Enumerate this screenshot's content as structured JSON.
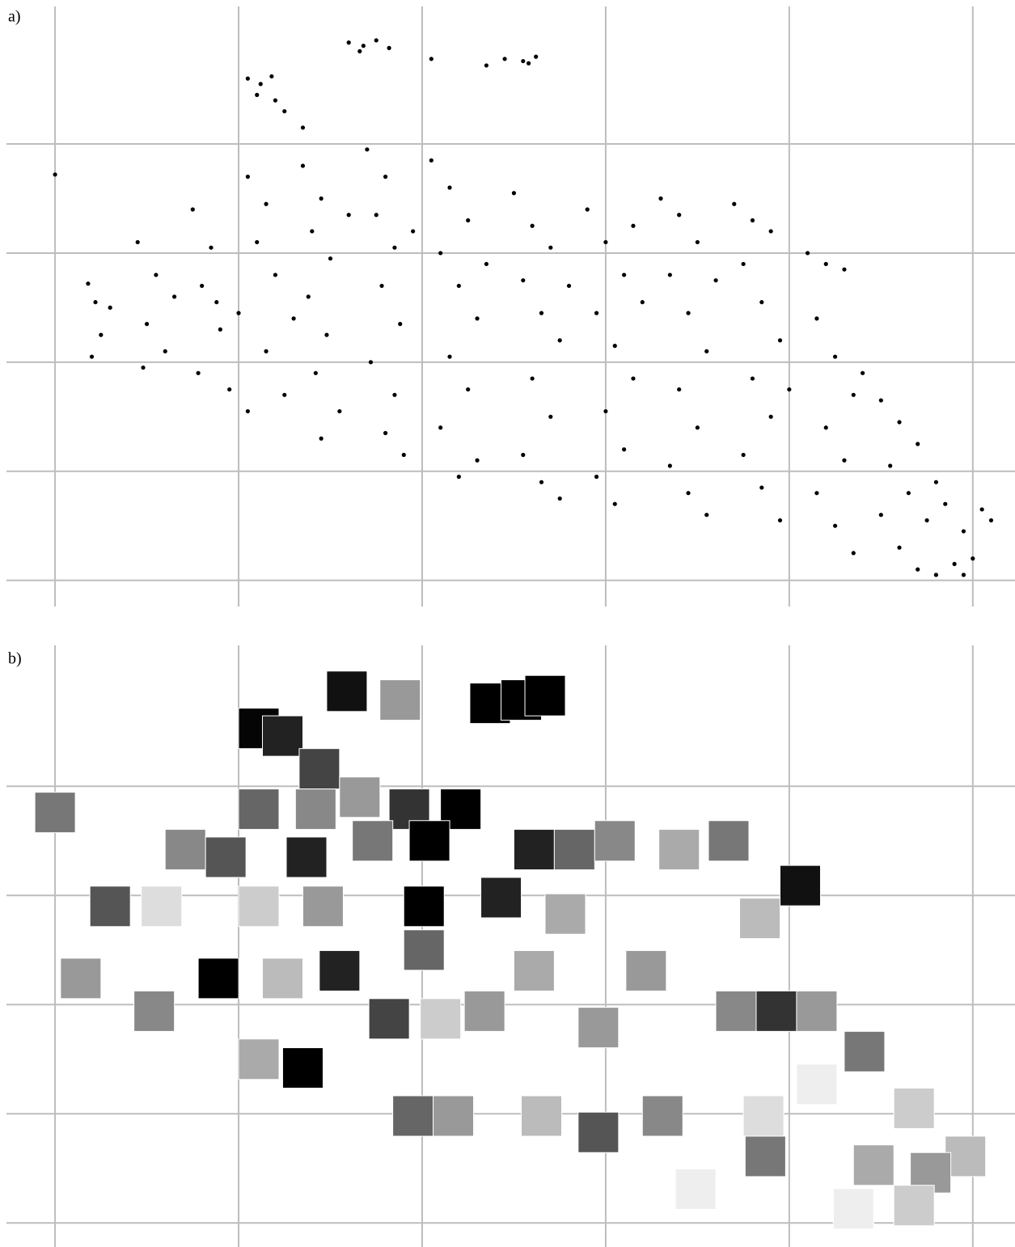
{
  "chart_data": [
    {
      "type": "scatter",
      "title": "a)",
      "color": "#000000",
      "grid": true,
      "xlim": [
        -0.3,
        5.23
      ],
      "ylim": [
        -0.24,
        5.32
      ],
      "xticks": [
        0,
        1,
        2,
        3,
        4,
        5
      ],
      "yticks": [
        0,
        1,
        2,
        3,
        4
      ],
      "x": [
        1.6,
        1.68,
        1.75,
        1.82,
        1.66,
        2.05,
        2.35,
        2.45,
        2.55,
        2.62,
        2.58,
        1.05,
        1.12,
        1.18,
        1.1,
        1.2,
        1.25,
        1.35,
        0.0,
        0.18,
        0.22,
        0.2,
        0.25,
        0.3,
        0.45,
        0.55,
        0.5,
        0.6,
        0.48,
        0.65,
        0.75,
        0.85,
        0.8,
        0.9,
        0.78,
        0.95,
        0.88,
        1.05,
        1.15,
        1.1,
        1.2,
        1.0,
        1.15,
        1.25,
        1.05,
        1.3,
        1.35,
        1.45,
        1.4,
        1.5,
        1.38,
        1.48,
        1.42,
        1.55,
        1.45,
        1.6,
        1.7,
        1.8,
        1.75,
        1.85,
        1.78,
        1.88,
        1.72,
        1.85,
        1.8,
        1.9,
        1.95,
        2.05,
        2.15,
        2.25,
        2.1,
        2.2,
        2.3,
        2.15,
        2.25,
        2.1,
        2.3,
        2.2,
        2.35,
        2.5,
        2.6,
        2.7,
        2.55,
        2.65,
        2.75,
        2.6,
        2.7,
        2.55,
        2.65,
        2.75,
        2.8,
        2.9,
        3.0,
        3.1,
        2.95,
        3.05,
        3.15,
        3.0,
        3.1,
        2.95,
        3.05,
        3.2,
        3.15,
        3.3,
        3.4,
        3.5,
        3.35,
        3.45,
        3.55,
        3.4,
        3.5,
        3.35,
        3.45,
        3.55,
        3.6,
        3.7,
        3.8,
        3.9,
        3.75,
        3.85,
        3.95,
        3.8,
        3.9,
        3.75,
        3.85,
        3.95,
        4.0,
        4.1,
        4.2,
        4.3,
        4.15,
        4.25,
        4.35,
        4.2,
        4.3,
        4.15,
        4.25,
        4.35,
        4.4,
        4.5,
        4.6,
        4.7,
        4.55,
        4.65,
        4.75,
        4.6,
        4.7,
        4.8,
        4.5,
        4.85,
        4.95,
        5.05,
        5.0,
        4.9,
        5.1,
        4.8,
        4.95
      ],
      "values": [
        4.93,
        4.9,
        4.95,
        4.88,
        4.85,
        4.78,
        4.72,
        4.78,
        4.76,
        4.8,
        4.74,
        4.6,
        4.55,
        4.62,
        4.45,
        4.4,
        4.3,
        4.15,
        3.72,
        2.72,
        2.55,
        2.05,
        2.25,
        2.5,
        3.1,
        2.8,
        2.35,
        2.1,
        1.95,
        2.6,
        3.4,
        3.05,
        2.7,
        2.3,
        1.9,
        1.75,
        2.55,
        3.7,
        3.45,
        3.1,
        2.8,
        2.45,
        2.1,
        1.7,
        1.55,
        2.4,
        3.8,
        3.5,
        3.2,
        2.95,
        2.6,
        2.25,
        1.9,
        1.55,
        1.3,
        3.35,
        3.95,
        3.7,
        3.35,
        3.05,
        2.7,
        2.35,
        2.0,
        1.7,
        1.35,
        1.15,
        3.2,
        3.85,
        3.6,
        3.3,
        3.0,
        2.7,
        2.4,
        2.05,
        1.75,
        1.4,
        1.1,
        0.95,
        2.9,
        3.55,
        3.25,
        3.05,
        2.75,
        2.45,
        2.2,
        1.85,
        1.5,
        1.15,
        0.9,
        0.75,
        2.7,
        3.4,
        3.1,
        2.8,
        2.45,
        2.15,
        1.85,
        1.55,
        1.2,
        0.95,
        0.7,
        2.55,
        3.25,
        3.5,
        3.35,
        3.1,
        2.8,
        2.45,
        2.1,
        1.75,
        1.4,
        1.05,
        0.8,
        0.6,
        2.75,
        3.45,
        3.3,
        3.2,
        2.9,
        2.55,
        2.2,
        1.85,
        1.5,
        1.15,
        0.85,
        0.55,
        1.75,
        3.0,
        2.9,
        2.85,
        2.4,
        2.05,
        1.7,
        1.4,
        1.1,
        0.8,
        0.5,
        0.25,
        1.9,
        1.65,
        1.45,
        1.25,
        1.05,
        0.8,
        0.55,
        0.3,
        0.1,
        0.9,
        0.6,
        0.7,
        0.45,
        0.65,
        0.2,
        0.15,
        0.55,
        0.05,
        0.05
      ]
    },
    {
      "type": "thumbnails",
      "title": "b)",
      "grid": true,
      "xlim": [
        -0.3,
        5.23
      ],
      "ylim": [
        -0.22,
        5.35
      ],
      "xticks": [
        0,
        1,
        2,
        3,
        4,
        5
      ],
      "yticks": [
        0,
        1,
        2,
        3,
        4
      ],
      "x": [
        0.0,
        1.59,
        1.88,
        2.37,
        2.54,
        2.67,
        1.11,
        1.24,
        1.44,
        1.42,
        1.93,
        2.21,
        1.11,
        1.66,
        0.71,
        0.93,
        1.37,
        1.73,
        2.04,
        2.61,
        2.83,
        3.05,
        3.4,
        3.67,
        4.06,
        3.84,
        0.3,
        0.58,
        1.11,
        1.46,
        2.01,
        2.43,
        2.78,
        0.89,
        1.24,
        1.55,
        2.01,
        2.61,
        3.22,
        0.14,
        0.54,
        1.82,
        2.1,
        2.34,
        2.96,
        3.71,
        3.93,
        4.15,
        4.41,
        1.35,
        1.11,
        1.95,
        2.17,
        2.65,
        2.96,
        3.31,
        3.86,
        4.15,
        4.68,
        4.96,
        3.49,
        3.87,
        4.46,
        4.77,
        4.35,
        4.68
      ],
      "values": [
        3.76,
        4.87,
        4.79,
        4.76,
        4.79,
        4.83,
        4.53,
        4.46,
        4.16,
        3.79,
        3.79,
        3.79,
        3.79,
        3.9,
        3.42,
        3.35,
        3.35,
        3.5,
        3.5,
        3.42,
        3.42,
        3.5,
        3.42,
        3.5,
        3.09,
        2.79,
        2.9,
        2.9,
        2.9,
        2.9,
        2.9,
        2.98,
        2.83,
        2.24,
        2.24,
        2.31,
        2.5,
        2.31,
        2.31,
        2.24,
        1.94,
        1.87,
        1.87,
        1.94,
        1.79,
        1.94,
        1.94,
        1.94,
        1.57,
        1.42,
        1.5,
        0.98,
        0.98,
        0.98,
        0.83,
        0.98,
        0.98,
        1.27,
        1.05,
        0.61,
        0.31,
        0.61,
        0.53,
        0.46,
        0.13,
        0.16
      ],
      "colors": [
        "#777777",
        "#111111",
        "#999999",
        "#000000",
        "#000000",
        "#000000",
        "#050505",
        "#222222",
        "#444444",
        "#888888",
        "#333333",
        "#000000",
        "#666666",
        "#999999",
        "#888888",
        "#555555",
        "#222222",
        "#777777",
        "#000000",
        "#222222",
        "#666666",
        "#888888",
        "#aaaaaa",
        "#777777",
        "#111111",
        "#bbbbbb",
        "#555555",
        "#dddddd",
        "#cccccc",
        "#999999",
        "#000000",
        "#222222",
        "#aaaaaa",
        "#000000",
        "#bbbbbb",
        "#222222",
        "#666666",
        "#aaaaaa",
        "#999999",
        "#999999",
        "#888888",
        "#444444",
        "#cccccc",
        "#999999",
        "#999999",
        "#888888",
        "#333333",
        "#999999",
        "#777777",
        "#000000",
        "#aaaaaa",
        "#666666",
        "#999999",
        "#bbbbbb",
        "#555555",
        "#888888",
        "#dddddd",
        "#eeeeee",
        "#cccccc",
        "#bbbbbb",
        "#eeeeee",
        "#777777",
        "#aaaaaa",
        "#999999",
        "#eeeeee",
        "#cccccc"
      ]
    }
  ]
}
